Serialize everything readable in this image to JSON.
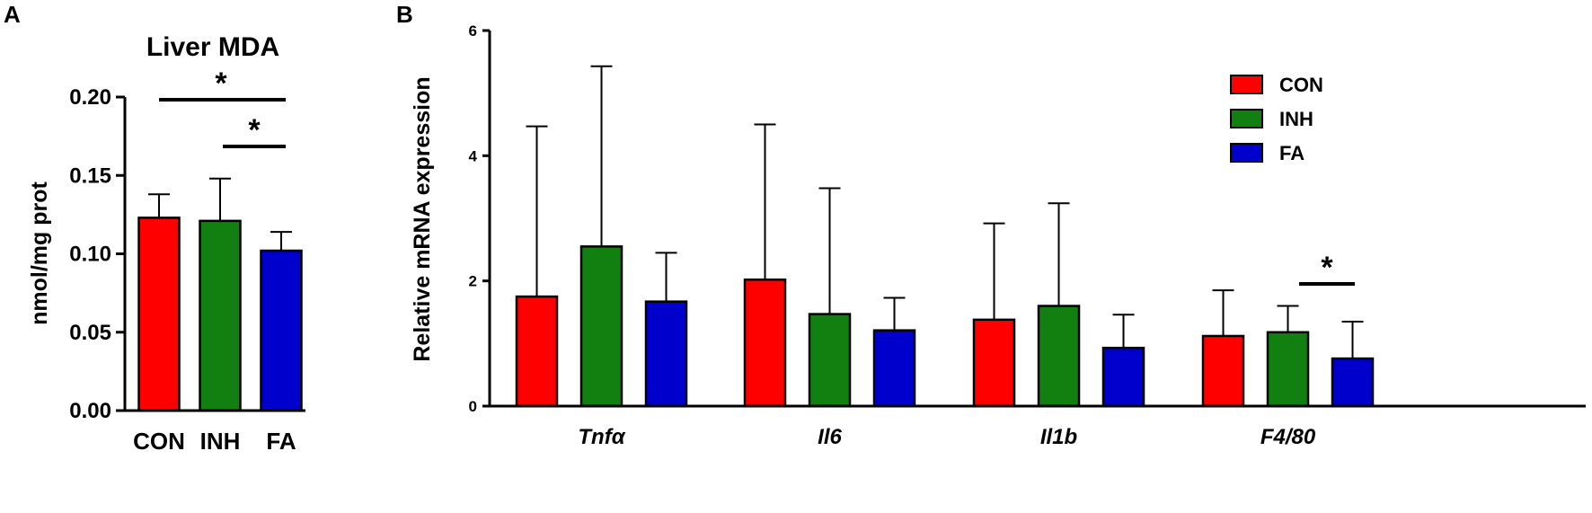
{
  "colors": {
    "CON": "#ff0000",
    "INH": "#118011",
    "FA": "#0000cc"
  },
  "panel_a": {
    "letter": "A"
  },
  "panel_b": {
    "letter": "B"
  },
  "chart_data": [
    {
      "type": "bar",
      "title": "Liver MDA",
      "xlabel": "",
      "ylabel": "nmol/mg prot",
      "ylim": [
        0,
        0.2
      ],
      "yticks": [
        "0.00",
        "0.05",
        "0.10",
        "0.15",
        "0.20"
      ],
      "categories": [
        "CON",
        "INH",
        "FA"
      ],
      "values": [
        0.123,
        0.121,
        0.102
      ],
      "errors": [
        0.015,
        0.027,
        0.012
      ],
      "significance": [
        {
          "from": "CON",
          "to": "FA",
          "label": "*"
        },
        {
          "from": "INH",
          "to": "FA",
          "label": "*"
        }
      ]
    },
    {
      "type": "bar",
      "xlabel": "",
      "ylabel": "Relative mRNA expression",
      "ylim": [
        0,
        6
      ],
      "yticks": [
        "0",
        "2",
        "4",
        "6"
      ],
      "categories": [
        "Tnfα",
        "Il6",
        "Il1b",
        "F4/80"
      ],
      "legend": {
        "position": "top-right"
      },
      "series": [
        {
          "name": "CON",
          "values": [
            1.75,
            2.02,
            1.38,
            1.12
          ],
          "errors": [
            2.72,
            2.48,
            1.54,
            0.73
          ]
        },
        {
          "name": "INH",
          "values": [
            2.55,
            1.47,
            1.6,
            1.18
          ],
          "errors": [
            2.88,
            2.01,
            1.64,
            0.42
          ]
        },
        {
          "name": "FA",
          "values": [
            1.67,
            1.21,
            0.93,
            0.76
          ],
          "errors": [
            0.78,
            0.52,
            0.53,
            0.59
          ]
        }
      ],
      "significance": [
        {
          "category": "F4/80",
          "from": "INH",
          "to": "FA",
          "label": "*"
        }
      ]
    }
  ]
}
